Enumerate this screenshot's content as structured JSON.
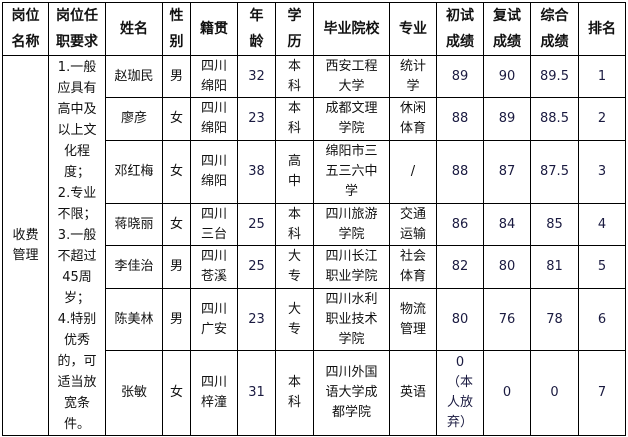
{
  "headers": [
    "岗位\n名称",
    "岗位任\n职要求",
    "姓名",
    "性\n别",
    "籍贯",
    "年\n龄",
    "学\n历",
    "毕业院校",
    "专业",
    "初试\n成绩",
    "复试\n成绩",
    "综合\n成绩",
    "排名"
  ],
  "position": "收费\n管理",
  "requirements": "1.一般\n应具有\n高中及\n以上文\n化程\n度；\n2.专业\n不限；\n3.一般\n不超过\n45周\n岁；\n4.特别\n优秀\n的，可\n适当放\n宽条\n件。",
  "rows": [
    {
      "name": "赵珈民",
      "gender": "男",
      "origin": "四川\n绵阳",
      "age": "32",
      "edu": "本\n科",
      "school": "西安工程\n大学",
      "major": "统计\n学",
      "first": "89",
      "second": "90",
      "total": "89.5",
      "rank": "1"
    },
    {
      "name": "廖彦",
      "gender": "女",
      "origin": "四川\n绵阳",
      "age": "23",
      "edu": "本\n科",
      "school": "成都文理\n学院",
      "major": "休闲\n体育",
      "first": "88",
      "second": "89",
      "total": "88.5",
      "rank": "2"
    },
    {
      "name": "邓红梅",
      "gender": "女",
      "origin": "四川\n绵阳",
      "age": "38",
      "edu": "高\n中",
      "school": "绵阳市三\n五三六中\n学",
      "major": "/",
      "first": "88",
      "second": "87",
      "total": "87.5",
      "rank": "3"
    },
    {
      "name": "蒋晓丽",
      "gender": "女",
      "origin": "四川\n三台",
      "age": "25",
      "edu": "本\n科",
      "school": "四川旅游\n学院",
      "major": "交通\n运输",
      "first": "86",
      "second": "84",
      "total": "85",
      "rank": "4"
    },
    {
      "name": "李佳治",
      "gender": "男",
      "origin": "四川\n苍溪",
      "age": "25",
      "edu": "大\n专",
      "school": "四川长江\n职业学院",
      "major": "社会\n体育",
      "first": "82",
      "second": "80",
      "total": "81",
      "rank": "5"
    },
    {
      "name": "陈美林",
      "gender": "男",
      "origin": "四川\n广安",
      "age": "23",
      "edu": "大\n专",
      "school": "四川水利\n职业技术\n学院",
      "major": "物流\n管理",
      "first": "80",
      "second": "76",
      "total": "78",
      "rank": "6"
    },
    {
      "name": "张敏",
      "gender": "女",
      "origin": "四川\n梓潼",
      "age": "31",
      "edu": "本\n科",
      "school": "四川外国\n语大学成\n都学院",
      "major": "英语",
      "first": "0\n（本\n人放\n弃）",
      "second": "0",
      "total": "0",
      "rank": "7"
    }
  ]
}
